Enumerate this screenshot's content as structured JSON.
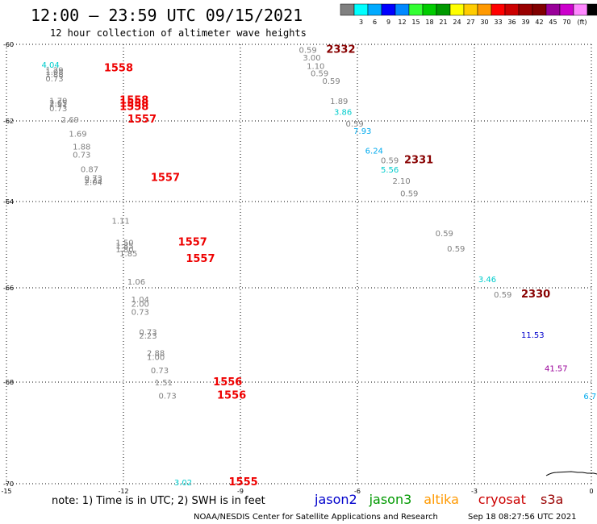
{
  "header": {
    "title": "12:00 – 23:59 UTC 09/15/2021",
    "subtitle": "12 hour collection of altimeter wave heights"
  },
  "color_scale": {
    "colors": [
      "#808080",
      "#00ffff",
      "#00aaff",
      "#0000ff",
      "#0088ff",
      "#33ff33",
      "#00cc00",
      "#009900",
      "#ffff00",
      "#ffcc00",
      "#ff9900",
      "#ff0000",
      "#cc0000",
      "#990000",
      "#800000",
      "#990099",
      "#cc00cc",
      "#ff88ff",
      "#000000"
    ],
    "labels": [
      "3",
      "6",
      "9",
      "12",
      "15",
      "18",
      "21",
      "24",
      "27",
      "30",
      "33",
      "36",
      "39",
      "42",
      "45",
      "70"
    ],
    "unit": "(ft)"
  },
  "axes": {
    "x_ticks": [
      "-15",
      "-12",
      "-9",
      "-6",
      "-3",
      "0"
    ],
    "y_ticks": [
      "-60",
      "-62",
      "-64",
      "-66",
      "-68",
      "-70"
    ]
  },
  "observations": [
    {
      "text": "4.04",
      "x": -14.1,
      "y": -60.53,
      "color": "#00cccc"
    },
    {
      "text": "1.29",
      "x": -14.0,
      "y": -60.66,
      "color": "#808080"
    },
    {
      "text": "1.98",
      "x": -14.0,
      "y": -60.72,
      "color": "#808080"
    },
    {
      "text": "1.88",
      "x": -14.0,
      "y": -60.78,
      "color": "#808080"
    },
    {
      "text": "0.73",
      "x": -14.0,
      "y": -60.88,
      "color": "#808080"
    },
    {
      "text": "1558",
      "x": -12.5,
      "y": -60.62,
      "color": "#ee0000",
      "tag": true
    },
    {
      "text": "1.70",
      "x": -13.9,
      "y": -61.46,
      "color": "#808080"
    },
    {
      "text": "2.65",
      "x": -13.9,
      "y": -61.52,
      "color": "#808080"
    },
    {
      "text": "2.31",
      "x": -13.9,
      "y": -61.56,
      "color": "#808080"
    },
    {
      "text": "0.73",
      "x": -13.9,
      "y": -61.66,
      "color": "#808080"
    },
    {
      "text": "1558",
      "x": -12.1,
      "y": -61.46,
      "color": "#ee0000",
      "tag": true
    },
    {
      "text": "1558",
      "x": -12.1,
      "y": -61.55,
      "color": "#ee0000",
      "tag": true
    },
    {
      "text": "1558",
      "x": -12.1,
      "y": -61.63,
      "color": "#ee0000",
      "tag": true
    },
    {
      "text": "2.69",
      "x": -13.6,
      "y": -61.96,
      "color": "#808080"
    },
    {
      "text": "1557",
      "x": -11.9,
      "y": -61.96,
      "color": "#ee0000",
      "tag": true
    },
    {
      "text": "1.69",
      "x": -13.4,
      "y": -62.31,
      "color": "#808080"
    },
    {
      "text": "1.88",
      "x": -13.3,
      "y": -62.63,
      "color": "#808080"
    },
    {
      "text": "0.73",
      "x": -13.3,
      "y": -62.83,
      "color": "#808080"
    },
    {
      "text": "0.87",
      "x": -13.1,
      "y": -63.19,
      "color": "#808080"
    },
    {
      "text": "0.73",
      "x": -13.0,
      "y": -63.41,
      "color": "#808080"
    },
    {
      "text": "2.23",
      "x": -13.0,
      "y": -63.46,
      "color": "#808080"
    },
    {
      "text": "2.04",
      "x": -13.0,
      "y": -63.51,
      "color": "#808080"
    },
    {
      "text": "1557",
      "x": -11.3,
      "y": -63.41,
      "color": "#ee0000",
      "tag": true
    },
    {
      "text": "1.11",
      "x": -12.3,
      "y": -64.44,
      "color": "#808080"
    },
    {
      "text": "1.50",
      "x": -12.2,
      "y": -64.94,
      "color": "#808080"
    },
    {
      "text": "1.85",
      "x": -12.2,
      "y": -65.02,
      "color": "#808080"
    },
    {
      "text": "1.80",
      "x": -12.2,
      "y": -65.1,
      "color": "#808080"
    },
    {
      "text": "1.85",
      "x": -12.1,
      "y": -65.2,
      "color": "#808080"
    },
    {
      "text": "1557",
      "x": -10.6,
      "y": -64.94,
      "color": "#ee0000",
      "tag": true
    },
    {
      "text": "1557",
      "x": -10.4,
      "y": -65.33,
      "color": "#ee0000",
      "tag": true
    },
    {
      "text": "1.06",
      "x": -11.9,
      "y": -65.85,
      "color": "#808080"
    },
    {
      "text": "1.04",
      "x": -11.8,
      "y": -66.24,
      "color": "#808080"
    },
    {
      "text": "2.00",
      "x": -11.8,
      "y": -66.33,
      "color": "#808080"
    },
    {
      "text": "0.73",
      "x": -11.8,
      "y": -66.5,
      "color": "#808080"
    },
    {
      "text": "0.73",
      "x": -11.6,
      "y": -66.93,
      "color": "#808080"
    },
    {
      "text": "2.23",
      "x": -11.6,
      "y": -67.01,
      "color": "#808080"
    },
    {
      "text": "2.88",
      "x": -11.4,
      "y": -67.38,
      "color": "#808080"
    },
    {
      "text": "1.00",
      "x": -11.4,
      "y": -67.46,
      "color": "#808080"
    },
    {
      "text": "0.73",
      "x": -11.3,
      "y": -67.74,
      "color": "#808080"
    },
    {
      "text": "1.51",
      "x": -11.2,
      "y": -68.0,
      "color": "#808080"
    },
    {
      "text": "1556",
      "x": -9.7,
      "y": -68.0,
      "color": "#ee0000",
      "tag": true
    },
    {
      "text": "0.73",
      "x": -11.1,
      "y": -68.26,
      "color": "#808080"
    },
    {
      "text": "1556",
      "x": -9.6,
      "y": -68.26,
      "color": "#ee0000",
      "tag": true
    },
    {
      "text": "3.02",
      "x": -10.7,
      "y": -69.97,
      "color": "#00cccc"
    },
    {
      "text": "1555",
      "x": -9.3,
      "y": -69.97,
      "color": "#ee0000",
      "tag": true
    },
    {
      "text": "0.59",
      "x": -7.5,
      "y": -60.14,
      "color": "#808080"
    },
    {
      "text": "2332",
      "x": -6.8,
      "y": -60.14,
      "color": "#880000",
      "tag": true
    },
    {
      "text": "3.00",
      "x": -7.4,
      "y": -60.34,
      "color": "#808080"
    },
    {
      "text": "1.10",
      "x": -7.3,
      "y": -60.56,
      "color": "#808080"
    },
    {
      "text": "0.59",
      "x": -7.2,
      "y": -60.75,
      "color": "#808080"
    },
    {
      "text": "0.59",
      "x": -6.9,
      "y": -60.95,
      "color": "#808080"
    },
    {
      "text": "1.89",
      "x": -6.7,
      "y": -61.47,
      "color": "#808080"
    },
    {
      "text": "3.86",
      "x": -6.6,
      "y": -61.76,
      "color": "#00cccc"
    },
    {
      "text": "0.59",
      "x": -6.3,
      "y": -62.06,
      "color": "#808080"
    },
    {
      "text": "7.93",
      "x": -6.1,
      "y": -62.24,
      "color": "#00aaee"
    },
    {
      "text": "6.24",
      "x": -5.8,
      "y": -62.73,
      "color": "#00aaee"
    },
    {
      "text": "0.59",
      "x": -5.4,
      "y": -62.97,
      "color": "#808080"
    },
    {
      "text": "2331",
      "x": -4.8,
      "y": -62.97,
      "color": "#880000",
      "tag": true
    },
    {
      "text": "5.56",
      "x": -5.4,
      "y": -63.2,
      "color": "#00cccc"
    },
    {
      "text": "2.10",
      "x": -5.1,
      "y": -63.48,
      "color": "#808080"
    },
    {
      "text": "0.59",
      "x": -4.9,
      "y": -63.79,
      "color": "#808080"
    },
    {
      "text": "0.59",
      "x": -4.0,
      "y": -64.73,
      "color": "#808080"
    },
    {
      "text": "0.59",
      "x": -3.7,
      "y": -65.08,
      "color": "#808080"
    },
    {
      "text": "3.46",
      "x": -2.9,
      "y": -65.79,
      "color": "#00cccc"
    },
    {
      "text": "0.59",
      "x": -2.5,
      "y": -66.14,
      "color": "#808080"
    },
    {
      "text": "2330",
      "x": -1.8,
      "y": -66.14,
      "color": "#880000",
      "tag": true
    },
    {
      "text": "11.53",
      "x": -1.8,
      "y": -66.99,
      "color": "#0000cc"
    },
    {
      "text": "41.57",
      "x": -1.2,
      "y": -67.7,
      "color": "#990099"
    },
    {
      "text": "6.7",
      "x": -0.2,
      "y": -68.27,
      "color": "#00aaee"
    }
  ],
  "footer": {
    "note": "note:  1) Time is in UTC;  2) SWH is in feet",
    "satellites": [
      {
        "name": "jason2",
        "color": "#0000cc"
      },
      {
        "name": "jason3",
        "color": "#009900"
      },
      {
        "name": "altika",
        "color": "#ff9900"
      },
      {
        "name": "cryosat",
        "color": "#cc0000"
      },
      {
        "name": "s3a",
        "color": "#990000"
      }
    ],
    "credit": "NOAA/NESDIS Center for Satellite Applications and Research",
    "timestamp": "Sep 18 08:27:56 UTC 2021"
  }
}
